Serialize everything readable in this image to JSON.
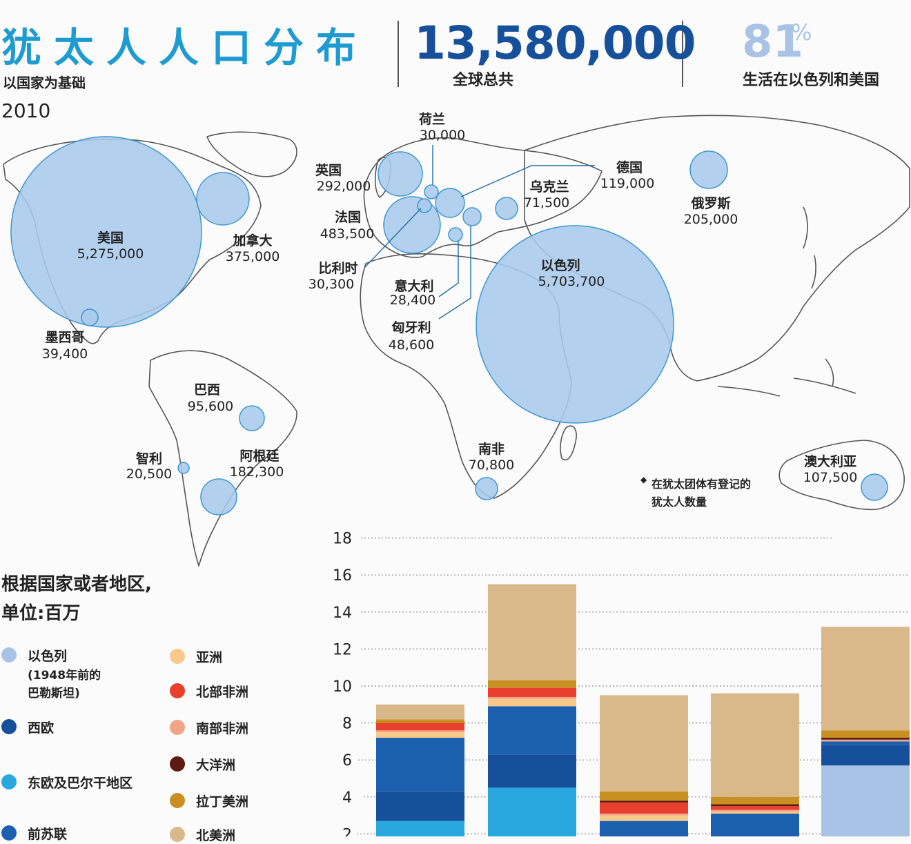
{
  "header": {
    "title": "犹太人人口分布",
    "subtitle": "以国家为基础",
    "year": "2010",
    "total": "13,580,000",
    "total_label": "全球总共",
    "percent": "81",
    "percent_sym": "%",
    "percent_label": "生活在以色列和美国"
  },
  "map": {
    "countries": [
      {
        "name": "美国",
        "value": "5,275,000",
        "population": 5275000
      },
      {
        "name": "加拿大",
        "value": "375,000",
        "population": 375000
      },
      {
        "name": "墨西哥",
        "value": "39,400",
        "population": 39400
      },
      {
        "name": "巴西",
        "value": "95,600",
        "population": 95600
      },
      {
        "name": "智利",
        "value": "20,500",
        "population": 20500
      },
      {
        "name": "阿根廷",
        "value": "182,300",
        "population": 182300
      },
      {
        "name": "英国",
        "value": "292,000",
        "population": 292000
      },
      {
        "name": "法国",
        "value": "483,500",
        "population": 483500
      },
      {
        "name": "比利时",
        "value": "30,300",
        "population": 30300
      },
      {
        "name": "荷兰",
        "value": "30,000",
        "population": 30000
      },
      {
        "name": "德国",
        "value": "119,000",
        "population": 119000
      },
      {
        "name": "乌克兰",
        "value": "71,500",
        "population": 71500
      },
      {
        "name": "意大利",
        "value": "28,400",
        "population": 28400
      },
      {
        "name": "匈牙利",
        "value": "48,600",
        "population": 48600
      },
      {
        "name": "俄罗斯",
        "value": "205,000",
        "population": 205000
      },
      {
        "name": "以色列",
        "value": "5,703,700",
        "population": 5703700
      },
      {
        "name": "南非",
        "value": "70,800",
        "population": 70800
      },
      {
        "name": "澳大利亚",
        "value": "107,500",
        "population": 107500
      }
    ],
    "note_marker": "◆",
    "note_line1": "在犹太团体有登记的",
    "note_line2": "犹太人数量"
  },
  "legend": {
    "title_line1": "根据国家或者地区,",
    "title_line2": "单位:百万",
    "items": [
      {
        "label": "以色列",
        "sub1": "(1948年前的",
        "sub2": "巴勒斯坦)",
        "color": "#a9c3e6"
      },
      {
        "label": "西欧",
        "color": "#17509a"
      },
      {
        "label": "东欧及巴尔干地区",
        "color": "#29a8e0"
      },
      {
        "label": "前苏联",
        "color": "#1b5fae"
      },
      {
        "label": "亚洲",
        "color": "#f9c98c"
      },
      {
        "label": "北部非洲",
        "color": "#e8402d"
      },
      {
        "label": "南部非洲",
        "color": "#f0a58a"
      },
      {
        "label": "大洋洲",
        "color": "#5c1a10"
      },
      {
        "label": "拉丁美洲",
        "color": "#c89020"
      },
      {
        "label": "北美洲",
        "color": "#d9b98a"
      }
    ]
  },
  "chart_data": {
    "type": "bar",
    "stacked": true,
    "ylim": [
      0,
      18
    ],
    "yticks": [
      "2",
      "4",
      "6",
      "8",
      "10",
      "12",
      "14",
      "16",
      "18"
    ],
    "series": [
      {
        "name": "以色列",
        "color": "#a9c3e6",
        "values": [
          0,
          0,
          0,
          0.7,
          5.7
        ]
      },
      {
        "name": "东欧及巴尔干地区",
        "color": "#29a8e0",
        "values": [
          2.7,
          4.5,
          0.5,
          0.1,
          0
        ]
      },
      {
        "name": "西欧",
        "color": "#17509a",
        "values": [
          1.6,
          1.8,
          1.3,
          1.1,
          1.1
        ]
      },
      {
        "name": "前苏联",
        "color": "#1b5fae",
        "values": [
          2.9,
          2.6,
          0.9,
          1.2,
          0.2
        ]
      },
      {
        "name": "亚洲",
        "color": "#f9c98c",
        "values": [
          0.3,
          0.4,
          0.3,
          0.1,
          0
        ]
      },
      {
        "name": "南部非洲",
        "color": "#f0a58a",
        "values": [
          0.1,
          0.1,
          0.1,
          0.1,
          0.1
        ]
      },
      {
        "name": "北部非洲",
        "color": "#e8402d",
        "values": [
          0.4,
          0.5,
          0.6,
          0.2,
          0
        ]
      },
      {
        "name": "大洋洲",
        "color": "#5c1a10",
        "values": [
          0,
          0,
          0.1,
          0.1,
          0.1
        ]
      },
      {
        "name": "拉丁美洲",
        "color": "#c89020",
        "values": [
          0.2,
          0.4,
          0.5,
          0.4,
          0.4
        ]
      },
      {
        "name": "北美洲",
        "color": "#d9b98a",
        "values": [
          0.8,
          5.2,
          5.2,
          5.6,
          5.6
        ]
      }
    ]
  }
}
